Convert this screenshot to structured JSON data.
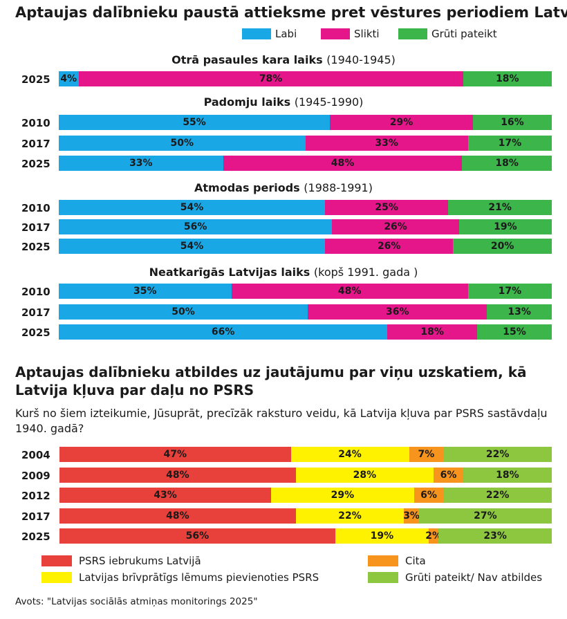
{
  "title": "Aptaujas dalībnieku paustā attieksme pret vēstures periodiem Latvijā",
  "legend1": [
    {
      "label": "Labi",
      "color": "#1aa7e6"
    },
    {
      "label": "Slikti",
      "color": "#e5158a"
    },
    {
      "label": "Grūti pateikt",
      "color": "#3cb54a"
    }
  ],
  "chart_data": [
    {
      "type": "bar",
      "orientation": "horizontal-stacked-100",
      "title": "Aptaujas dalībnieku paustā attieksme pret vēstures periodiem Latvijā",
      "series_names": [
        "Labi",
        "Slikti",
        "Grūti pateikt"
      ],
      "colors": [
        "#1aa7e6",
        "#e5158a",
        "#3cb54a"
      ],
      "groups": [
        {
          "title": "Otrā pasaules kara laiks",
          "range": "(1940-1945)",
          "rows": [
            {
              "year": "2025",
              "values": [
                4,
                78,
                18
              ]
            }
          ]
        },
        {
          "title": "Padomju laiks",
          "range": "(1945-1990)",
          "rows": [
            {
              "year": "2010",
              "values": [
                55,
                29,
                16
              ]
            },
            {
              "year": "2017",
              "values": [
                50,
                33,
                17
              ]
            },
            {
              "year": "2025",
              "values": [
                33,
                48,
                18
              ]
            }
          ]
        },
        {
          "title": "Atmodas periods",
          "range": "(1988-1991)",
          "rows": [
            {
              "year": "2010",
              "values": [
                54,
                25,
                21
              ]
            },
            {
              "year": "2017",
              "values": [
                56,
                26,
                19
              ]
            },
            {
              "year": "2025",
              "values": [
                54,
                26,
                20
              ]
            }
          ]
        },
        {
          "title": "Neatkarīgās Latvijas laiks",
          "range": "(kopš 1991. gada )",
          "rows": [
            {
              "year": "2010",
              "values": [
                35,
                48,
                17
              ]
            },
            {
              "year": "2017",
              "values": [
                50,
                36,
                13
              ]
            },
            {
              "year": "2025",
              "values": [
                66,
                18,
                15
              ]
            }
          ]
        }
      ]
    },
    {
      "type": "bar",
      "orientation": "horizontal-stacked-100",
      "title": "Aptaujas dalībnieku atbildes uz jautājumu par viņu uzskatiem, kā Latvija kļuva par daļu no PSRS",
      "subtitle": "Kurš no šiem izteikumie, Jūsuprāt, precīzāk raksturo veidu, kā Latvija kļuva par PSRS sastāvdaļu 1940. gadā?",
      "series_names": [
        "PSRS iebrukums Latvijā",
        "Latvijas brīvprātīgs lēmums pievienoties PSRS",
        "Cita",
        "Grūti pateikt/ Nav atbildes"
      ],
      "colors": [
        "#e8413c",
        "#fff200",
        "#f7941d",
        "#8dc63f"
      ],
      "rows": [
        {
          "year": "2004",
          "values": [
            47,
            24,
            7,
            22
          ]
        },
        {
          "year": "2009",
          "values": [
            48,
            28,
            6,
            18
          ]
        },
        {
          "year": "2012",
          "values": [
            43,
            29,
            6,
            22
          ]
        },
        {
          "year": "2017",
          "values": [
            48,
            22,
            3,
            27
          ]
        },
        {
          "year": "2025",
          "values": [
            56,
            19,
            2,
            23
          ]
        }
      ]
    }
  ],
  "title2": "Aptaujas dalībnieku atbildes uz jautājumu par viņu uzskatiem, kā Latvija kļuva par daļu no PSRS",
  "subtitle2": "Kurš no šiem izteikumie, Jūsuprāt, precīzāk raksturo veidu, kā Latvija kļuva par PSRS sastāvdaļu 1940. gadā?",
  "legend2": [
    {
      "label": "PSRS iebrukums Latvijā",
      "color": "#e8413c"
    },
    {
      "label": "Cita",
      "color": "#f7941d"
    },
    {
      "label": "Latvijas brīvprātīgs lēmums pievienoties PSRS",
      "color": "#fff200"
    },
    {
      "label": "Grūti pateikt/ Nav atbildes",
      "color": "#8dc63f"
    }
  ],
  "source": "Avots: \"Latvijas sociālās atmiņas monitorings 2025\""
}
